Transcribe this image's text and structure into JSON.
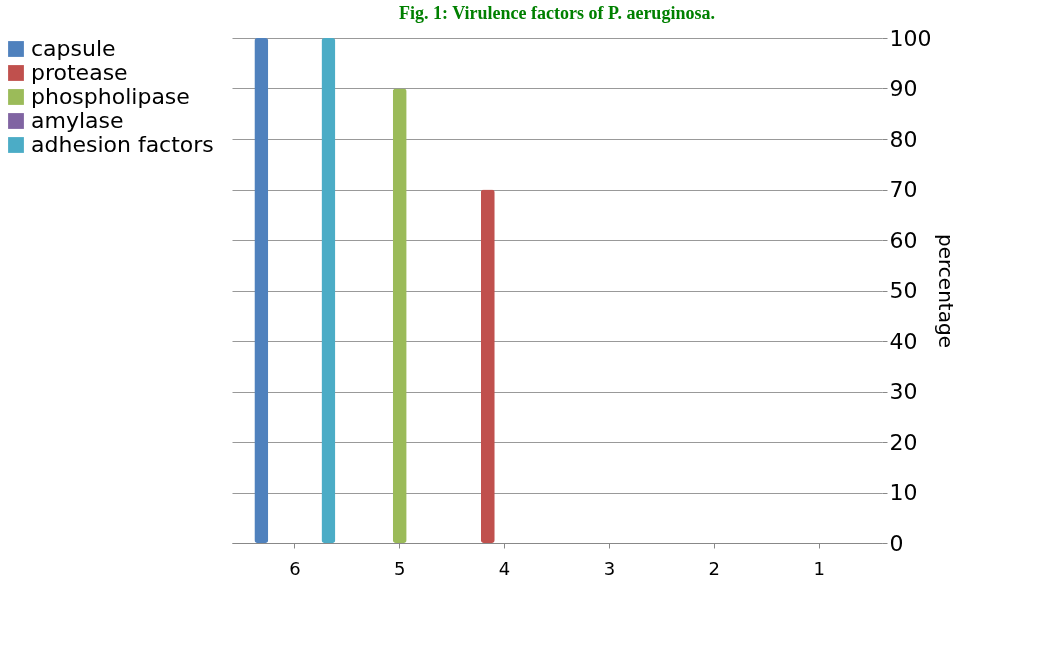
{
  "chart_data": {
    "type": "bar",
    "title": "Fig. 1: Virulence factors of P. aeruginosa.",
    "ylabel": "percentage",
    "categories": [
      "6",
      "5",
      "4",
      "3",
      "2",
      "1"
    ],
    "series": [
      {
        "name": "capsule",
        "color": "#4f81bd",
        "values": [
          100,
          null,
          null,
          null,
          null,
          null
        ]
      },
      {
        "name": "protease",
        "color": "#c0504d",
        "values": [
          null,
          null,
          70,
          null,
          null,
          null
        ]
      },
      {
        "name": "phospholipase",
        "color": "#9bbb59",
        "values": [
          null,
          90,
          null,
          null,
          null,
          null
        ]
      },
      {
        "name": "amylase",
        "color": "#8064a2",
        "values": [
          null,
          null,
          null,
          null,
          null,
          0
        ]
      },
      {
        "name": "adhesion factors",
        "color": "#4bacc6",
        "values": [
          100,
          null,
          null,
          null,
          null,
          null
        ]
      }
    ],
    "ylim": [
      0,
      100
    ],
    "yticks": [
      0,
      10,
      20,
      30,
      40,
      50,
      60,
      70,
      80,
      90,
      100
    ],
    "grid": "y",
    "legend": "left"
  }
}
